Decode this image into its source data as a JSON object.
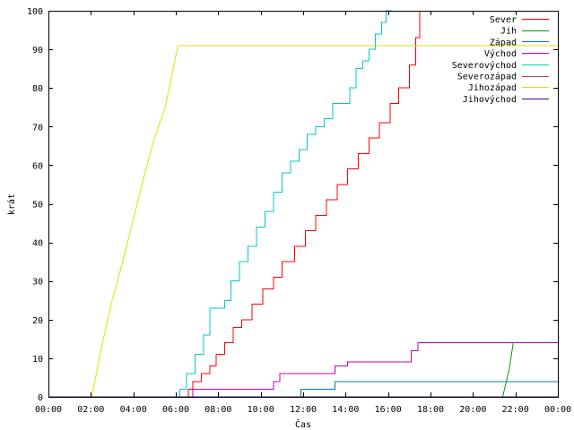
{
  "chart_data": {
    "type": "line",
    "xlabel": "Čas",
    "ylabel": "krát",
    "xlim": [
      0,
      24
    ],
    "ylim": [
      0,
      100
    ],
    "x_ticks": [
      0,
      2,
      4,
      6,
      8,
      10,
      12,
      14,
      16,
      18,
      20,
      22,
      24
    ],
    "x_tick_labels": [
      "00:00",
      "02:00",
      "04:00",
      "06:00",
      "08:00",
      "10:00",
      "12:00",
      "14:00",
      "16:00",
      "18:00",
      "20:00",
      "22:00",
      "00:00"
    ],
    "y_ticks": [
      0,
      10,
      20,
      30,
      40,
      50,
      60,
      70,
      80,
      90,
      100
    ],
    "grid": false,
    "legend_position": "top-right",
    "series": [
      {
        "name": "Sever",
        "color": "#ff0000",
        "step": true,
        "x": [
          0,
          6.6,
          6.8,
          7.2,
          7.6,
          7.9,
          8.3,
          8.7,
          9.1,
          9.6,
          10.1,
          10.6,
          11,
          11.6,
          12.1,
          12.6,
          13.1,
          13.6,
          14.1,
          14.6,
          15.1,
          15.6,
          16.1,
          16.5,
          17,
          17.3,
          17.5
        ],
        "y": [
          0,
          2,
          4,
          6,
          8,
          11,
          14,
          18,
          20,
          24,
          28,
          31,
          35,
          39,
          43,
          47,
          51,
          55,
          59,
          63,
          67,
          71,
          76,
          80,
          86,
          93,
          100
        ]
      },
      {
        "name": "Jih",
        "color": "#00a000",
        "step": false,
        "x": [
          0,
          21.4,
          21.7,
          21.9
        ],
        "y": [
          0,
          0,
          7,
          14
        ]
      },
      {
        "name": "Západ",
        "color": "#0080a0",
        "step": true,
        "x": [
          0,
          11.9,
          13.5,
          24
        ],
        "y": [
          0,
          2,
          4,
          4
        ]
      },
      {
        "name": "Východ",
        "color": "#c000c0",
        "step": true,
        "x": [
          0,
          6.8,
          10.6,
          10.9,
          13.5,
          14.1,
          17.1,
          17.4,
          24
        ],
        "y": [
          0,
          2,
          4,
          6,
          8,
          9,
          12,
          14,
          14
        ]
      },
      {
        "name": "Severovýchod",
        "color": "#00c8c8",
        "step": true,
        "x": [
          0,
          6.2,
          6.5,
          6.9,
          7.3,
          7.6,
          8.3,
          8.6,
          9,
          9.4,
          9.8,
          10.2,
          10.6,
          11,
          11.4,
          11.8,
          12.2,
          12.6,
          13,
          13.4,
          14.2,
          14.5,
          14.8,
          15.1,
          15.4,
          15.7,
          15.9,
          16.2
        ],
        "y": [
          0,
          2,
          6,
          11,
          16,
          23,
          25,
          30,
          35,
          39,
          44,
          48,
          53,
          58,
          61,
          64,
          68,
          70,
          72,
          76,
          80,
          85,
          87,
          90,
          94,
          97,
          100,
          100
        ]
      },
      {
        "name": "Severozápad",
        "color": "#c04040",
        "step": true,
        "x": [
          0,
          24
        ],
        "y": [
          0,
          0
        ]
      },
      {
        "name": "Jihozápad",
        "color": "#e0e000",
        "step": false,
        "x": [
          0,
          2.05,
          2.5,
          3,
          3.5,
          4,
          4.5,
          5,
          5.5,
          6.1,
          24
        ],
        "y": [
          0,
          0,
          13,
          25,
          35,
          46,
          57,
          67,
          75,
          91,
          91
        ]
      },
      {
        "name": "Jihovýchod",
        "color": "#4000a0",
        "step": true,
        "x": [
          0,
          24
        ],
        "y": [
          0,
          0
        ]
      }
    ]
  }
}
